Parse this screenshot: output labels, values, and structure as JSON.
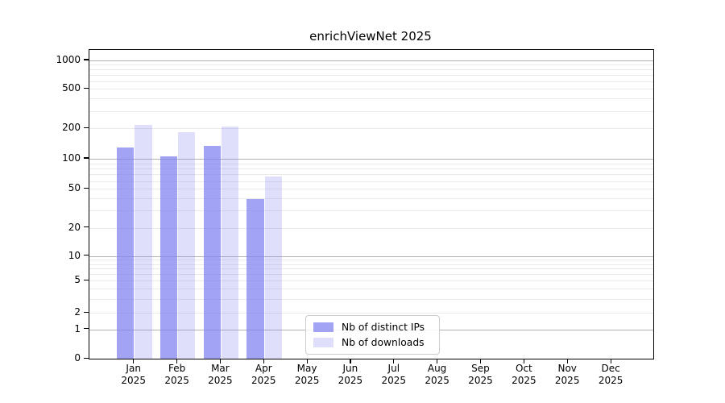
{
  "title": "enrichViewNet 2025",
  "legend": {
    "items": [
      {
        "label": "Nb of distinct IPs",
        "color": "rgba(127,127,240,0.72)"
      },
      {
        "label": "Nb of downloads",
        "color": "rgba(127,127,240,0.25)"
      }
    ]
  },
  "colors": {
    "bar_distinct_ips": "rgba(127,127,240,0.72)",
    "bar_downloads": "rgba(127,127,240,0.25)",
    "grid_major": "#b2b2b2",
    "grid_minor": "#eaeaea",
    "spine": "#000000"
  },
  "chart_data": {
    "type": "bar",
    "title": "enrichViewNet 2025",
    "categories": [
      "Jan 2025",
      "Feb 2025",
      "Mar 2025",
      "Apr 2025",
      "May 2025",
      "Jun 2025",
      "Jul 2025",
      "Aug 2025",
      "Sep 2025",
      "Oct 2025",
      "Nov 2025",
      "Dec 2025"
    ],
    "series": [
      {
        "name": "Nb of distinct IPs",
        "values": [
          130,
          105,
          134,
          39,
          0,
          0,
          0,
          0,
          0,
          0,
          0,
          0
        ]
      },
      {
        "name": "Nb of downloads",
        "values": [
          215,
          185,
          210,
          67,
          0,
          0,
          0,
          0,
          0,
          0,
          0,
          0
        ]
      }
    ],
    "xlabel": "",
    "ylabel": "",
    "yscale": "symlog",
    "ylim": [
      0,
      1280
    ],
    "yticks": [
      0,
      1,
      2,
      5,
      10,
      20,
      50,
      100,
      200,
      500,
      1000
    ],
    "minor_gridline_values": [
      2,
      3,
      4,
      5,
      6,
      7,
      8,
      9,
      20,
      30,
      40,
      50,
      60,
      70,
      80,
      90,
      200,
      300,
      400,
      500,
      600,
      700,
      800,
      900
    ],
    "major_gridline_values": [
      1,
      10,
      100,
      1000
    ],
    "grid": true,
    "legend_position": "lower center"
  }
}
